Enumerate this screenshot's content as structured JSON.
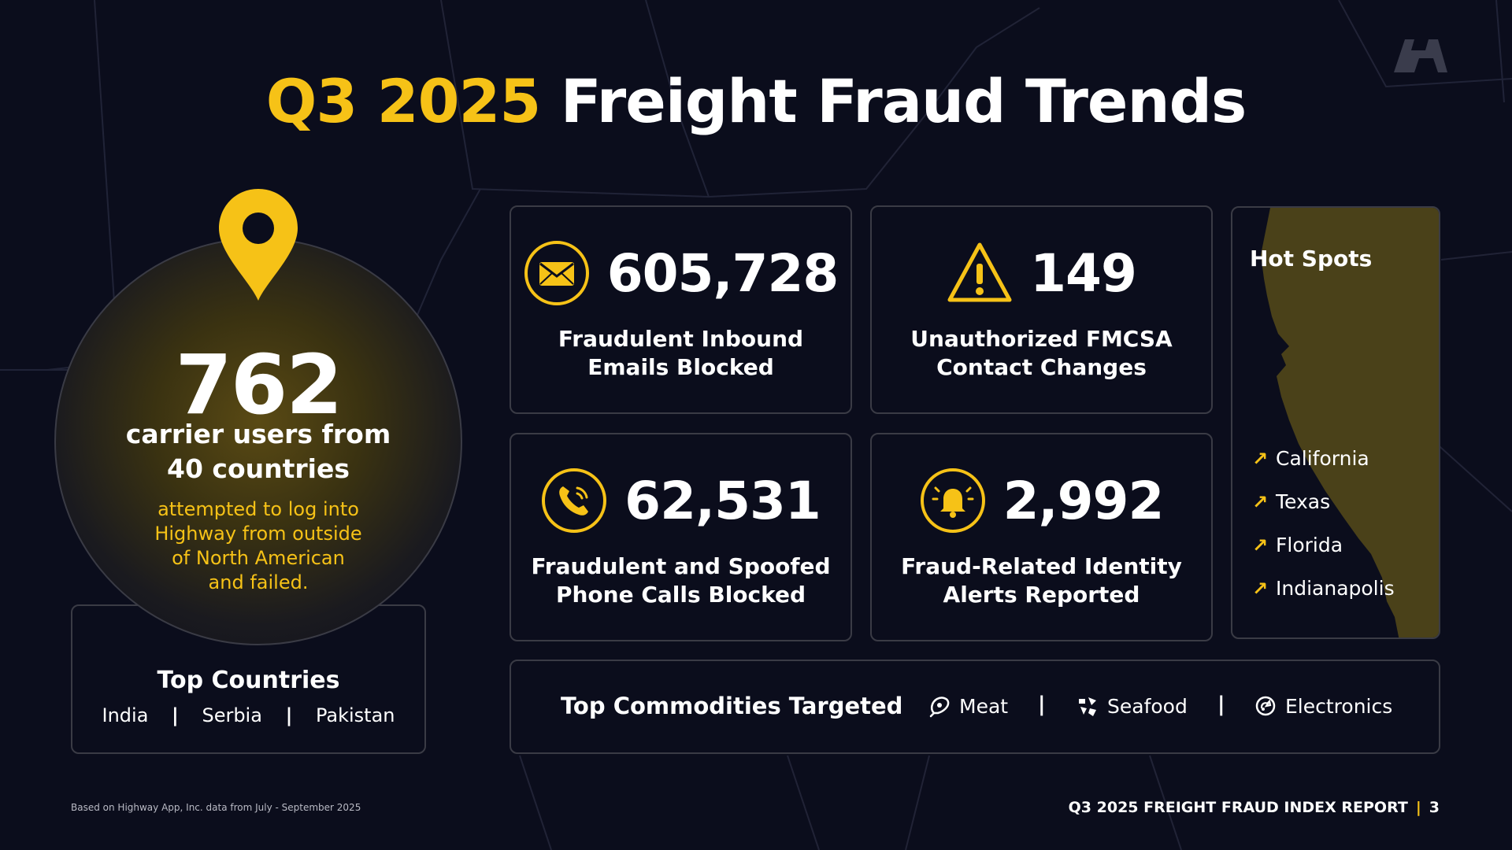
{
  "title": {
    "highlight": "Q3 2025",
    "rest": "Freight Fraud Trends"
  },
  "colors": {
    "accent": "#f6c217",
    "background": "#0b0d1c",
    "border": "#3a3b45",
    "text": "#ffffff"
  },
  "logo": {
    "icon": "highway-logo-icon"
  },
  "login_attempts": {
    "icon": "location-pin-icon",
    "number": "762",
    "subtitle_line1": "carrier users from",
    "subtitle_line2": "40 countries",
    "note_line1": "attempted to log into",
    "note_line2": "Highway from outside",
    "note_line3": "of North American",
    "note_line4": "and failed."
  },
  "top_countries": {
    "title": "Top Countries",
    "items": [
      "India",
      "Serbia",
      "Pakistan"
    ],
    "separator": "|"
  },
  "stats": [
    {
      "icon": "envelope-icon",
      "number": "605,728",
      "label_line1": "Fraudulent Inbound",
      "label_line2": "Emails Blocked"
    },
    {
      "icon": "warning-triangle-icon",
      "number": "149",
      "label_line1": "Unauthorized FMCSA",
      "label_line2": "Contact Changes"
    },
    {
      "icon": "phone-icon",
      "number": "62,531",
      "label_line1": "Fraudulent and Spoofed",
      "label_line2": "Phone Calls Blocked"
    },
    {
      "icon": "bell-icon",
      "number": "2,992",
      "label_line1": "Fraud-Related Identity",
      "label_line2": "Alerts Reported"
    }
  ],
  "hot_spots": {
    "title": "Hot Spots",
    "arrow": "↗",
    "items": [
      "California",
      "Texas",
      "Florida",
      "Indianapolis"
    ]
  },
  "commodities": {
    "title": "Top Commodities Targeted",
    "separator": "|",
    "items": [
      {
        "icon": "meat-icon",
        "label": "Meat"
      },
      {
        "icon": "seafood-icon",
        "label": "Seafood"
      },
      {
        "icon": "electronics-icon",
        "label": "Electronics"
      }
    ]
  },
  "footer": {
    "note": "Based on Highway App, Inc. data from July - September 2025",
    "report": "Q3 2025 FREIGHT FRAUD INDEX REPORT",
    "divider": "|",
    "page": "3"
  }
}
